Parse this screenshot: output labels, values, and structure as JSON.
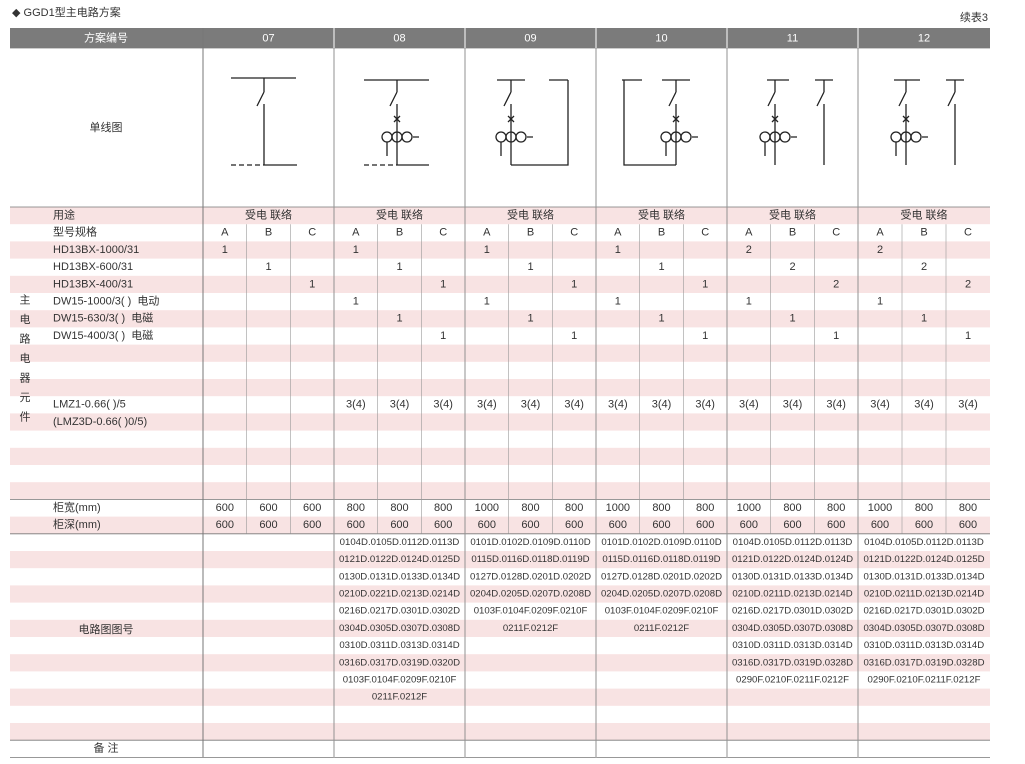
{
  "header": {
    "title": "◆ GGD1型主电路方案",
    "continued": "续表3"
  },
  "table": {
    "scheme_label": "方案编号",
    "diagram_label": "单线图",
    "usage_label": "用途",
    "spec_label": "型号规格",
    "group_label": "主电路电器元件",
    "components": [
      "HD13BX-1000/31",
      "HD13BX-600/31",
      "HD13BX-400/31",
      "DW15-1000/3( )  电动",
      "DW15-630/3( )  电磁",
      "DW15-400/3( )  电磁",
      "LMZ1-0.66( )/5",
      "(LMZ3D-0.66( )0/5)"
    ],
    "width_label": "柜宽(mm)",
    "depth_label": "柜深(mm)",
    "circuit_label": "电路图图号",
    "remarks_label": "备 注",
    "schemes": [
      {
        "code": "07",
        "usage": "受电 联络",
        "columns": [
          "A",
          "B",
          "C"
        ],
        "cells": [
          [
            1,
            null,
            null
          ],
          [
            null,
            1,
            null
          ],
          [
            null,
            null,
            1
          ],
          [
            null,
            null,
            null
          ],
          [
            null,
            null,
            null
          ],
          [
            null,
            null,
            null
          ],
          [
            null,
            null,
            null
          ],
          [
            null,
            null,
            null
          ]
        ],
        "width": [
          600,
          600,
          600
        ],
        "depth": [
          600,
          600,
          600
        ],
        "circuits": []
      },
      {
        "code": "08",
        "usage": "受电 联络",
        "columns": [
          "A",
          "B",
          "C"
        ],
        "cells": [
          [
            1,
            null,
            null
          ],
          [
            null,
            1,
            null
          ],
          [
            null,
            null,
            1
          ],
          [
            1,
            null,
            null
          ],
          [
            null,
            1,
            null
          ],
          [
            null,
            null,
            1
          ],
          [
            "3(4)",
            "3(4)",
            "3(4)"
          ],
          [
            null,
            null,
            null
          ]
        ],
        "width": [
          800,
          800,
          800
        ],
        "depth": [
          600,
          600,
          600
        ],
        "circuits": [
          "0104D.0105D.0112D.0113D",
          "0121D.0122D.0124D.0125D",
          "0130D.0131D.0133D.0134D",
          "0210D.0221D.0213D.0214D",
          "0216D.0217D.0301D.0302D",
          "0304D.0305D.0307D.0308D",
          "0310D.0311D.0313D.0314D",
          "0316D.0317D.0319D.0320D",
          "0103F.0104F.0209F.0210F",
          "0211F.0212F"
        ]
      },
      {
        "code": "09",
        "usage": "受电 联络",
        "columns": [
          "A",
          "B",
          "C"
        ],
        "cells": [
          [
            1,
            null,
            null
          ],
          [
            null,
            1,
            null
          ],
          [
            null,
            null,
            1
          ],
          [
            1,
            null,
            null
          ],
          [
            null,
            1,
            null
          ],
          [
            null,
            null,
            1
          ],
          [
            "3(4)",
            "3(4)",
            "3(4)"
          ],
          [
            null,
            null,
            null
          ]
        ],
        "width": [
          1000,
          800,
          800
        ],
        "depth": [
          600,
          600,
          600
        ],
        "circuits": [
          "0101D.0102D.0109D.0110D",
          "0115D.0116D.0118D.0119D",
          "0127D.0128D.0201D.0202D",
          "0204D.0205D.0207D.0208D",
          "0103F.0104F.0209F.0210F",
          "0211F.0212F"
        ]
      },
      {
        "code": "10",
        "usage": "受电 联络",
        "columns": [
          "A",
          "B",
          "C"
        ],
        "cells": [
          [
            1,
            null,
            null
          ],
          [
            null,
            1,
            null
          ],
          [
            null,
            null,
            1
          ],
          [
            1,
            null,
            null
          ],
          [
            null,
            1,
            null
          ],
          [
            null,
            null,
            1
          ],
          [
            "3(4)",
            "3(4)",
            "3(4)"
          ],
          [
            null,
            null,
            null
          ]
        ],
        "width": [
          1000,
          800,
          800
        ],
        "depth": [
          600,
          600,
          600
        ],
        "circuits": [
          "0101D.0102D.0109D.0110D",
          "0115D.0116D.0118D.0119D",
          "0127D.0128D.0201D.0202D",
          "0204D.0205D.0207D.0208D",
          "0103F.0104F.0209F.0210F",
          "0211F.0212F"
        ]
      },
      {
        "code": "11",
        "usage": "受电 联络",
        "columns": [
          "A",
          "B",
          "C"
        ],
        "cells": [
          [
            2,
            null,
            null
          ],
          [
            null,
            2,
            null
          ],
          [
            null,
            null,
            2
          ],
          [
            1,
            null,
            null
          ],
          [
            null,
            1,
            null
          ],
          [
            null,
            null,
            1
          ],
          [
            "3(4)",
            "3(4)",
            "3(4)"
          ],
          [
            null,
            null,
            null
          ]
        ],
        "width": [
          1000,
          800,
          800
        ],
        "depth": [
          600,
          600,
          600
        ],
        "circuits": [
          "0104D.0105D.0112D.0113D",
          "0121D.0122D.0124D.0124D",
          "0130D.0131D.0133D.0134D",
          "0210D.0211D.0213D.0214D",
          "0216D.0217D.0301D.0302D",
          "0304D.0305D.0307D.0308D",
          "0310D.0311D.0313D.0314D",
          "0316D.0317D.0319D.0328D",
          "0290F.0210F.0211F.0212F"
        ]
      },
      {
        "code": "12",
        "usage": "受电 联络",
        "columns": [
          "A",
          "B",
          "C"
        ],
        "cells": [
          [
            2,
            null,
            null
          ],
          [
            null,
            2,
            null
          ],
          [
            null,
            null,
            2
          ],
          [
            1,
            null,
            null
          ],
          [
            null,
            1,
            null
          ],
          [
            null,
            null,
            1
          ],
          [
            "3(4)",
            "3(4)",
            "3(4)"
          ],
          [
            null,
            null,
            null
          ]
        ],
        "width": [
          1000,
          800,
          800
        ],
        "depth": [
          600,
          600,
          600
        ],
        "circuits": [
          "0104D.0105D.0112D.0113D",
          "0121D.0122D.0124D.0125D",
          "0130D.0131D.0133D.0134D",
          "0210D.0211D.0213D.0214D",
          "0216D.0217D.0301D.0302D",
          "0304D.0305D.0307D.0308D",
          "0310D.0311D.0313D.0314D",
          "0316D.0317D.0319D.0328D",
          "0290F.0210F.0211F.0212F"
        ]
      }
    ]
  }
}
